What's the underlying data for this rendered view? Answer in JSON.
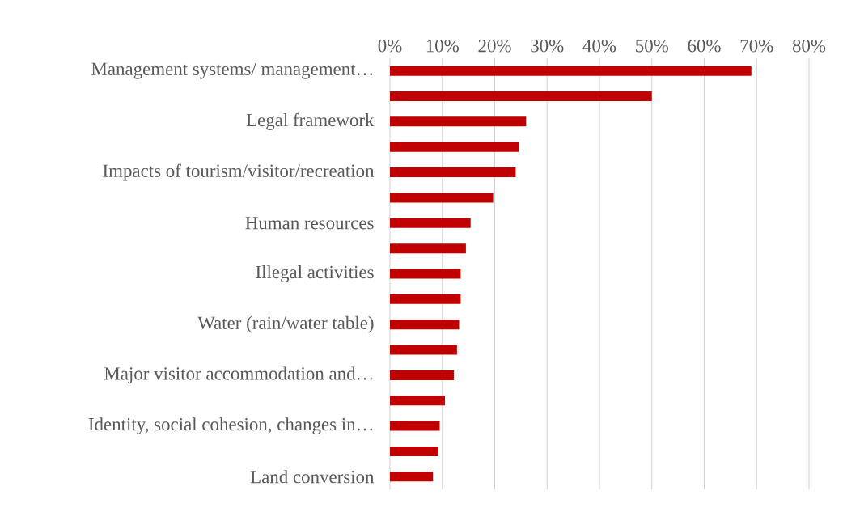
{
  "chart_data": {
    "type": "bar",
    "orientation": "horizontal",
    "color": "#c00000",
    "grid": "x",
    "categories": [
      "Management systems/ management…",
      null,
      "Legal framework",
      null,
      "Impacts of tourism/visitor/recreation",
      null,
      "Human resources",
      null,
      "Illegal activities",
      null,
      "Water (rain/water table)",
      null,
      "Major visitor accommodation and…",
      null,
      "Identity, social cohesion, changes in…",
      null,
      "Land conversion"
    ],
    "values": [
      69,
      50,
      26,
      24.6,
      24,
      19.7,
      15.4,
      14.5,
      13.5,
      13.5,
      13.2,
      12.8,
      12.2,
      10.5,
      9.5,
      9.2,
      8.2
    ],
    "xlim": [
      0,
      80
    ],
    "xticks": [
      {
        "value": 0,
        "label": "0%"
      },
      {
        "value": 10,
        "label": "10%"
      },
      {
        "value": 20,
        "label": "20%"
      },
      {
        "value": 30,
        "label": "30%"
      },
      {
        "value": 40,
        "label": "40%"
      },
      {
        "value": 50,
        "label": "50%"
      },
      {
        "value": 60,
        "label": "60%"
      },
      {
        "value": 70,
        "label": "70%"
      },
      {
        "value": 80,
        "label": "80%"
      }
    ]
  }
}
